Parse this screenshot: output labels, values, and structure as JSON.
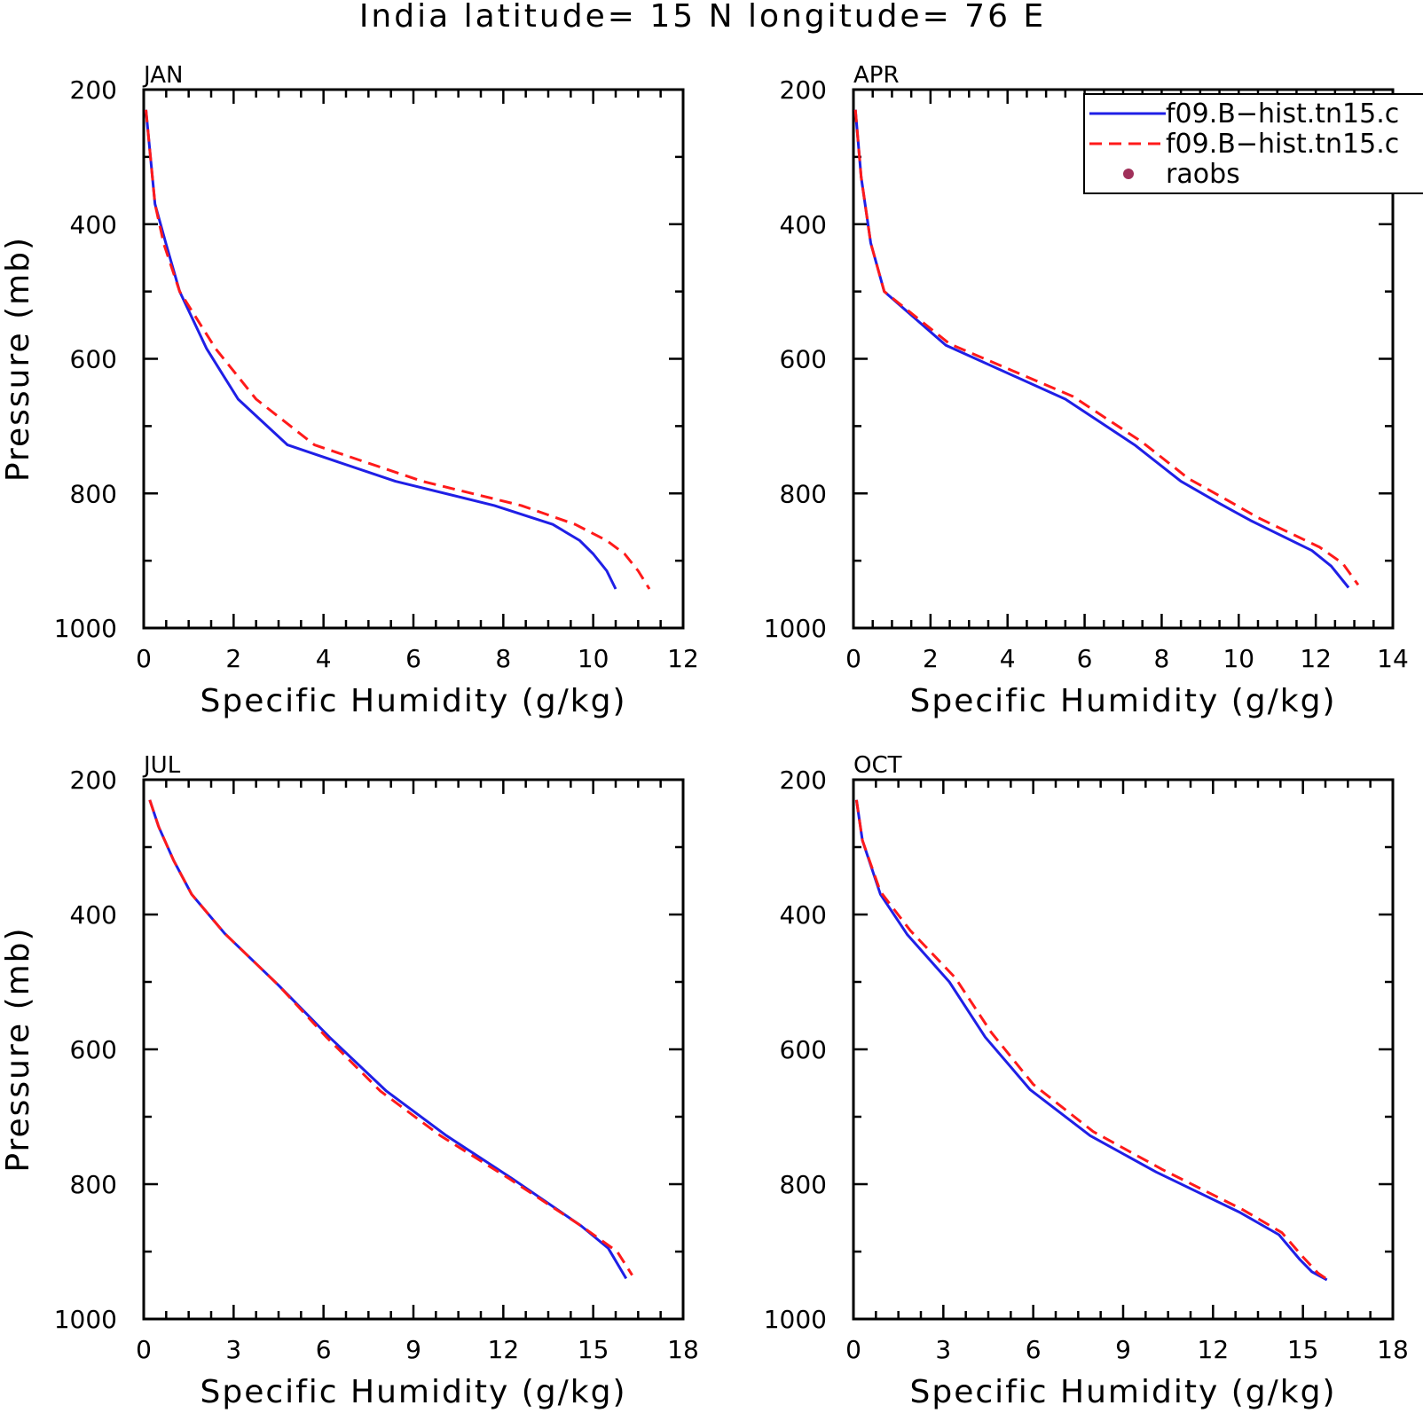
{
  "title": "India  latitude= 15 N longitude= 76 E",
  "colors": {
    "model1": "#1f1fe6",
    "model2": "#ff1a1a",
    "raobs": "#a0305a"
  },
  "legend": {
    "placement": "top-right",
    "entries": [
      {
        "label": "f09.B−hist.tn15.c",
        "style": "solid-blue"
      },
      {
        "label": "f09.B−hist.tn15.c",
        "style": "dashed-red"
      },
      {
        "label": "raobs",
        "style": "dot"
      }
    ]
  },
  "chart_data": [
    {
      "type": "line",
      "panel": "JAN",
      "xlabel": "Specific Humidity (g/kg)",
      "ylabel": "Pressure (mb)",
      "xlim": [
        0,
        12
      ],
      "ylim": [
        200,
        1000
      ],
      "y_inverted": true,
      "xticks": [
        0,
        2,
        4,
        6,
        8,
        10,
        12
      ],
      "yticks": [
        200,
        400,
        600,
        800,
        1000
      ],
      "series": [
        {
          "name": "f09.B−hist.tn15.c",
          "points": [
            [
              0.05,
              230
            ],
            [
              0.25,
              370
            ],
            [
              0.5,
              430
            ],
            [
              0.8,
              500
            ],
            [
              1.4,
              585
            ],
            [
              2.1,
              660
            ],
            [
              3.2,
              728
            ],
            [
              5.6,
              782
            ],
            [
              7.8,
              818
            ],
            [
              9.1,
              846
            ],
            [
              9.7,
              870
            ],
            [
              10.0,
              890
            ],
            [
              10.3,
              915
            ],
            [
              10.5,
              942
            ]
          ]
        },
        {
          "name": "f09.B−hist.tn15.c",
          "points": [
            [
              0.05,
              230
            ],
            [
              0.25,
              370
            ],
            [
              0.45,
              430
            ],
            [
              0.8,
              500
            ],
            [
              1.6,
              585
            ],
            [
              2.5,
              660
            ],
            [
              3.8,
              728
            ],
            [
              6.2,
              782
            ],
            [
              8.4,
              818
            ],
            [
              9.6,
              846
            ],
            [
              10.3,
              870
            ],
            [
              10.7,
              890
            ],
            [
              11.0,
              915
            ],
            [
              11.25,
              942
            ]
          ]
        },
        {
          "name": "raobs",
          "points": []
        }
      ]
    },
    {
      "type": "line",
      "panel": "APR",
      "xlabel": "Specific Humidity (g/kg)",
      "ylabel": "",
      "xlim": [
        0,
        14
      ],
      "ylim": [
        200,
        1000
      ],
      "y_inverted": true,
      "xticks": [
        0,
        2,
        4,
        6,
        8,
        10,
        12,
        14
      ],
      "yticks": [
        200,
        400,
        600,
        800,
        1000
      ],
      "series": [
        {
          "name": "f09.B−hist.tn15.c",
          "points": [
            [
              0.05,
              230
            ],
            [
              0.2,
              330
            ],
            [
              0.45,
              428
            ],
            [
              0.8,
              500
            ],
            [
              2.4,
              580
            ],
            [
              5.5,
              660
            ],
            [
              7.3,
              728
            ],
            [
              8.5,
              782
            ],
            [
              9.5,
              815
            ],
            [
              10.3,
              840
            ],
            [
              11.9,
              885
            ],
            [
              12.4,
              908
            ],
            [
              12.85,
              940
            ]
          ]
        },
        {
          "name": "f09.B−hist.tn15.c",
          "points": [
            [
              0.05,
              230
            ],
            [
              0.2,
              330
            ],
            [
              0.45,
              428
            ],
            [
              0.8,
              500
            ],
            [
              2.5,
              578
            ],
            [
              5.7,
              656
            ],
            [
              7.5,
              724
            ],
            [
              8.7,
              778
            ],
            [
              9.7,
              810
            ],
            [
              10.5,
              836
            ],
            [
              12.1,
              880
            ],
            [
              12.7,
              904
            ],
            [
              13.1,
              936
            ]
          ]
        },
        {
          "name": "raobs",
          "points": []
        }
      ]
    },
    {
      "type": "line",
      "panel": "JUL",
      "xlabel": "Specific Humidity (g/kg)",
      "ylabel": "Pressure (mb)",
      "xlim": [
        0,
        18
      ],
      "ylim": [
        200,
        1000
      ],
      "y_inverted": true,
      "xticks": [
        0,
        3,
        6,
        9,
        12,
        15,
        18
      ],
      "yticks": [
        200,
        400,
        600,
        800,
        1000
      ],
      "series": [
        {
          "name": "f09.B−hist.tn15.c",
          "points": [
            [
              0.2,
              230
            ],
            [
              0.5,
              270
            ],
            [
              1.0,
              320
            ],
            [
              1.6,
              370
            ],
            [
              2.7,
              428
            ],
            [
              4.5,
              505
            ],
            [
              6.2,
              582
            ],
            [
              8.1,
              662
            ],
            [
              10.1,
              728
            ],
            [
              12.3,
              792
            ],
            [
              14.6,
              862
            ],
            [
              15.5,
              895
            ],
            [
              16.1,
              940
            ]
          ]
        },
        {
          "name": "f09.B−hist.tn15.c",
          "points": [
            [
              0.2,
              230
            ],
            [
              0.5,
              270
            ],
            [
              1.0,
              320
            ],
            [
              1.6,
              370
            ],
            [
              2.7,
              428
            ],
            [
              4.5,
              505
            ],
            [
              6.1,
              582
            ],
            [
              7.9,
              662
            ],
            [
              9.9,
              728
            ],
            [
              12.2,
              792
            ],
            [
              14.6,
              862
            ],
            [
              15.8,
              900
            ],
            [
              16.3,
              935
            ]
          ]
        },
        {
          "name": "raobs",
          "points": []
        }
      ]
    },
    {
      "type": "line",
      "panel": "OCT",
      "xlabel": "Specific Humidity (g/kg)",
      "ylabel": "",
      "xlim": [
        0,
        18
      ],
      "ylim": [
        200,
        1000
      ],
      "y_inverted": true,
      "xticks": [
        0,
        3,
        6,
        9,
        12,
        15,
        18
      ],
      "yticks": [
        200,
        400,
        600,
        800,
        1000
      ],
      "series": [
        {
          "name": "f09.B−hist.tn15.c",
          "points": [
            [
              0.1,
              230
            ],
            [
              0.3,
              290
            ],
            [
              0.9,
              370
            ],
            [
              1.8,
              430
            ],
            [
              3.2,
              500
            ],
            [
              4.4,
              582
            ],
            [
              5.9,
              660
            ],
            [
              7.9,
              728
            ],
            [
              10.1,
              782
            ],
            [
              12.9,
              842
            ],
            [
              14.2,
              875
            ],
            [
              14.9,
              912
            ],
            [
              15.3,
              930
            ],
            [
              15.8,
              942
            ]
          ]
        },
        {
          "name": "f09.B−hist.tn15.c",
          "points": [
            [
              0.1,
              230
            ],
            [
              0.3,
              290
            ],
            [
              0.9,
              366
            ],
            [
              1.9,
              424
            ],
            [
              3.4,
              494
            ],
            [
              4.6,
              575
            ],
            [
              6.0,
              652
            ],
            [
              8.0,
              722
            ],
            [
              10.3,
              778
            ],
            [
              13.0,
              838
            ],
            [
              14.3,
              872
            ],
            [
              15.0,
              908
            ],
            [
              15.5,
              932
            ],
            [
              15.9,
              944
            ]
          ]
        },
        {
          "name": "raobs",
          "points": []
        }
      ]
    }
  ]
}
